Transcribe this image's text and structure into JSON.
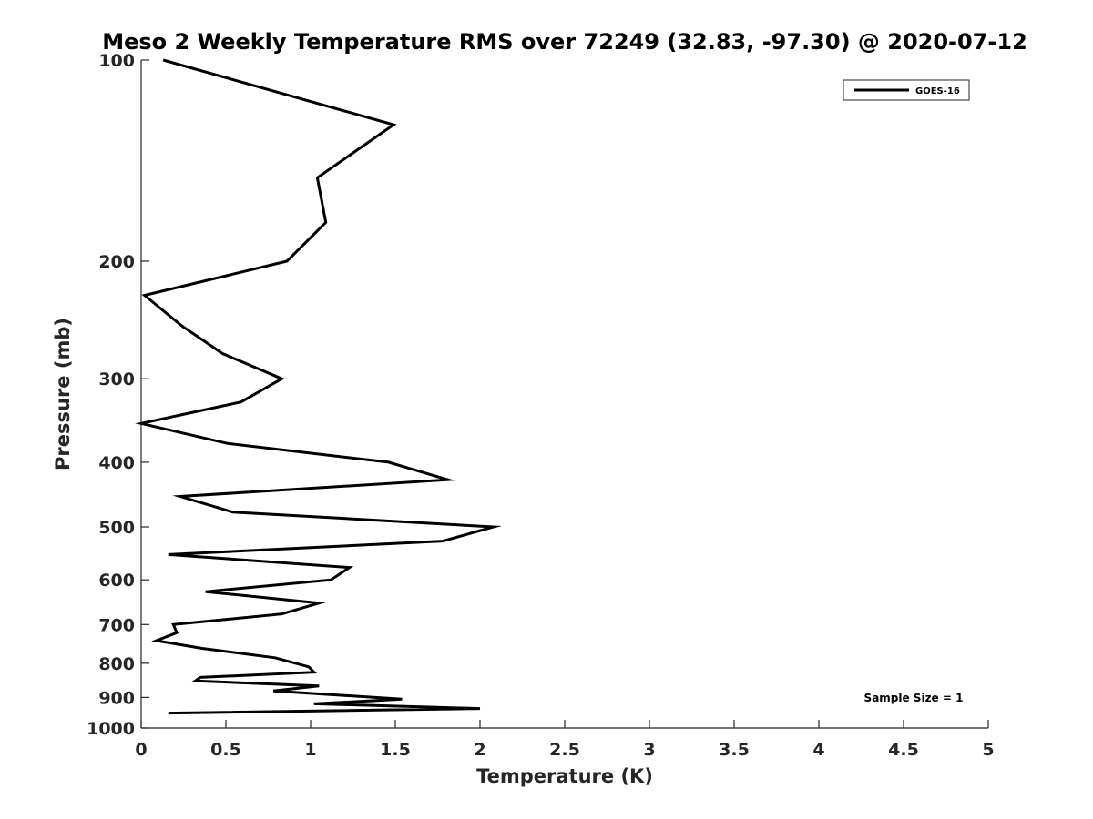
{
  "chart_data": {
    "type": "line",
    "title": "Meso 2 Weekly Temperature RMS over 72249 (32.83, -97.30) @ 2020-07-12",
    "xlabel": "Temperature (K)",
    "ylabel": "Pressure (mb)",
    "xlim": [
      0,
      5
    ],
    "ylim": [
      100,
      1000
    ],
    "y_scale": "log",
    "y_reversed": true,
    "x_ticks": [
      "0",
      "0.5",
      "1",
      "1.5",
      "2",
      "2.5",
      "3",
      "3.5",
      "4",
      "4.5",
      "5"
    ],
    "y_ticks": [
      "100",
      "200",
      "300",
      "400",
      "500",
      "600",
      "700",
      "800",
      "900",
      "1000"
    ],
    "grid": false,
    "legend_position": "top-right",
    "annotation": "Sample Size = 1",
    "series": [
      {
        "name": "GOES-16",
        "color": "#000000",
        "points": [
          {
            "x": 0.13,
            "p": 100
          },
          {
            "x": 1.49,
            "p": 125
          },
          {
            "x": 1.04,
            "p": 150
          },
          {
            "x": 1.09,
            "p": 175
          },
          {
            "x": 0.86,
            "p": 200
          },
          {
            "x": 0.02,
            "p": 225
          },
          {
            "x": 0.24,
            "p": 250
          },
          {
            "x": 0.48,
            "p": 275
          },
          {
            "x": 0.83,
            "p": 300
          },
          {
            "x": 0.59,
            "p": 325
          },
          {
            "x": 0.0,
            "p": 350
          },
          {
            "x": 0.51,
            "p": 375
          },
          {
            "x": 1.46,
            "p": 400
          },
          {
            "x": 1.81,
            "p": 425
          },
          {
            "x": 0.23,
            "p": 450
          },
          {
            "x": 0.54,
            "p": 475
          },
          {
            "x": 2.08,
            "p": 500
          },
          {
            "x": 1.78,
            "p": 525
          },
          {
            "x": 0.16,
            "p": 550
          },
          {
            "x": 1.23,
            "p": 575
          },
          {
            "x": 1.12,
            "p": 600
          },
          {
            "x": 0.38,
            "p": 625
          },
          {
            "x": 1.05,
            "p": 650
          },
          {
            "x": 0.83,
            "p": 675
          },
          {
            "x": 0.19,
            "p": 700
          },
          {
            "x": 0.21,
            "p": 720
          },
          {
            "x": 0.09,
            "p": 740
          },
          {
            "x": 0.36,
            "p": 760
          },
          {
            "x": 0.79,
            "p": 785
          },
          {
            "x": 0.99,
            "p": 810
          },
          {
            "x": 1.02,
            "p": 825
          },
          {
            "x": 0.35,
            "p": 840
          },
          {
            "x": 0.32,
            "p": 850
          },
          {
            "x": 1.05,
            "p": 865
          },
          {
            "x": 0.78,
            "p": 880
          },
          {
            "x": 1.54,
            "p": 905
          },
          {
            "x": 1.02,
            "p": 920
          },
          {
            "x": 2.0,
            "p": 935
          },
          {
            "x": 0.16,
            "p": 950
          }
        ]
      }
    ]
  }
}
